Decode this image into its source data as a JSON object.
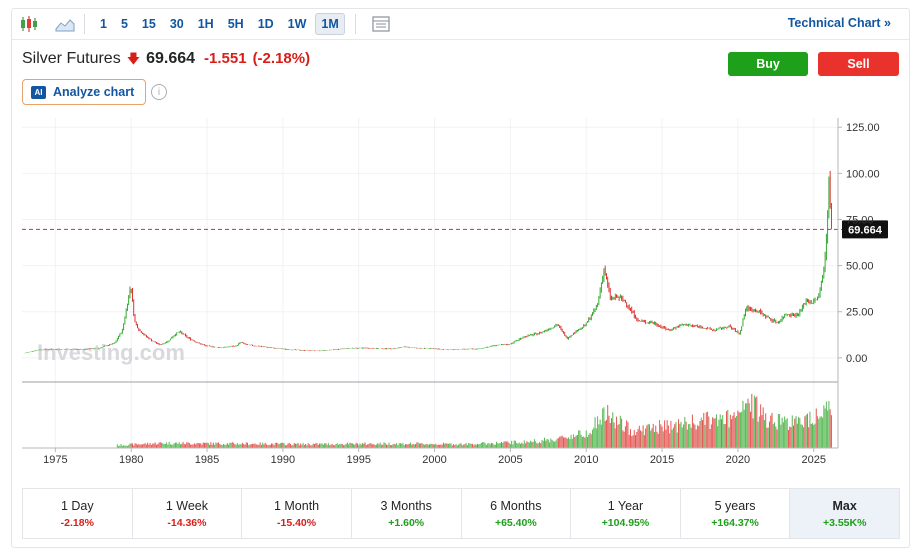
{
  "toolbar": {
    "timeframes": [
      "1",
      "5",
      "15",
      "30",
      "1H",
      "5H",
      "1D",
      "1W",
      "1M"
    ],
    "active_timeframe": "1M",
    "technical_chart_label": "Technical Chart »"
  },
  "instrument": {
    "name": "Silver Futures",
    "price": "69.664",
    "change": "-1.551",
    "change_pct": "(-2.18%)"
  },
  "actions": {
    "buy_label": "Buy",
    "sell_label": "Sell",
    "analyze_label": "Analyze chart",
    "ai_badge": "AI"
  },
  "colors": {
    "up": "#1ea01a",
    "down": "#d91e18",
    "accent": "#1256a0"
  },
  "watermark": "Investing.com",
  "chart_data": {
    "type": "bar",
    "x_tick_labels": [
      "1975",
      "1980",
      "1985",
      "1990",
      "1995",
      "2000",
      "2005",
      "2010",
      "2015",
      "2020",
      "2025"
    ],
    "y_tick_labels": [
      "0.00",
      "25.00",
      "50.00",
      "75.00",
      "100.00",
      "125.00"
    ],
    "ylim": [
      -12,
      130
    ],
    "xlim": [
      1972.8,
      2026.6
    ],
    "current_price_label": "69.664",
    "current_price": 69.664,
    "price_series": [
      [
        1973.0,
        2.5
      ],
      [
        1974.0,
        4.4
      ],
      [
        1975.0,
        4.5
      ],
      [
        1976.0,
        4.4
      ],
      [
        1977.0,
        4.7
      ],
      [
        1978.0,
        5.4
      ],
      [
        1979.0,
        8.0
      ],
      [
        1979.5,
        15.0
      ],
      [
        1979.8,
        28.0
      ],
      [
        1980.05,
        40.0
      ],
      [
        1980.3,
        20.0
      ],
      [
        1980.6,
        15.0
      ],
      [
        1981.0,
        12.0
      ],
      [
        1981.5,
        9.0
      ],
      [
        1982.0,
        7.0
      ],
      [
        1982.5,
        9.0
      ],
      [
        1983.0,
        13.0
      ],
      [
        1983.3,
        14.0
      ],
      [
        1983.8,
        11.0
      ],
      [
        1984.5,
        8.0
      ],
      [
        1985.0,
        6.5
      ],
      [
        1986.0,
        5.5
      ],
      [
        1987.0,
        6.5
      ],
      [
        1987.3,
        8.5
      ],
      [
        1987.7,
        7.0
      ],
      [
        1988.5,
        6.3
      ],
      [
        1989.5,
        5.3
      ],
      [
        1990.5,
        4.5
      ],
      [
        1991.5,
        4.0
      ],
      [
        1992.5,
        3.8
      ],
      [
        1993.5,
        4.5
      ],
      [
        1994.5,
        5.2
      ],
      [
        1995.5,
        5.3
      ],
      [
        1996.5,
        5.0
      ],
      [
        1997.5,
        5.0
      ],
      [
        1998.0,
        6.0
      ],
      [
        1999.0,
        5.2
      ],
      [
        2000.0,
        5.0
      ],
      [
        2001.0,
        4.3
      ],
      [
        2002.0,
        4.7
      ],
      [
        2003.0,
        4.8
      ],
      [
        2004.0,
        6.7
      ],
      [
        2005.0,
        7.3
      ],
      [
        2006.0,
        11.5
      ],
      [
        2007.0,
        13.4
      ],
      [
        2008.2,
        18.0
      ],
      [
        2008.8,
        10.5
      ],
      [
        2009.5,
        15.0
      ],
      [
        2010.0,
        17.5
      ],
      [
        2010.8,
        28.0
      ],
      [
        2011.25,
        48.0
      ],
      [
        2011.7,
        32.0
      ],
      [
        2012.2,
        33.0
      ],
      [
        2012.7,
        30.0
      ],
      [
        2013.5,
        20.0
      ],
      [
        2014.5,
        19.0
      ],
      [
        2015.5,
        15.0
      ],
      [
        2016.5,
        18.0
      ],
      [
        2017.5,
        17.0
      ],
      [
        2018.5,
        15.0
      ],
      [
        2019.5,
        17.0
      ],
      [
        2020.2,
        13.0
      ],
      [
        2020.6,
        27.0
      ],
      [
        2021.0,
        26.0
      ],
      [
        2021.5,
        25.0
      ],
      [
        2022.0,
        22.0
      ],
      [
        2022.7,
        19.0
      ],
      [
        2023.3,
        24.0
      ],
      [
        2024.0,
        23.0
      ],
      [
        2024.6,
        31.0
      ],
      [
        2025.0,
        30.0
      ],
      [
        2025.4,
        33.0
      ],
      [
        2025.65,
        44.0
      ],
      [
        2025.85,
        55.0
      ],
      [
        2026.0,
        80.0
      ],
      [
        2026.05,
        100.0
      ],
      [
        2026.12,
        95.0
      ],
      [
        2026.2,
        69.664
      ]
    ],
    "volume_profile": [
      [
        1979.0,
        0.05
      ],
      [
        1982.0,
        0.09
      ],
      [
        1987.0,
        0.08
      ],
      [
        1992.0,
        0.07
      ],
      [
        1997.0,
        0.08
      ],
      [
        2002.0,
        0.07
      ],
      [
        2006.0,
        0.11
      ],
      [
        2008.0,
        0.16
      ],
      [
        2010.0,
        0.28
      ],
      [
        2011.25,
        0.62
      ],
      [
        2013.0,
        0.32
      ],
      [
        2016.0,
        0.42
      ],
      [
        2018.0,
        0.5
      ],
      [
        2020.1,
        0.55
      ],
      [
        2020.6,
        0.85
      ],
      [
        2022.0,
        0.55
      ],
      [
        2024.0,
        0.45
      ],
      [
        2026.0,
        0.78
      ]
    ]
  },
  "periods": [
    {
      "label": "1 Day",
      "change": "-2.18%",
      "dir": "down"
    },
    {
      "label": "1 Week",
      "change": "-14.36%",
      "dir": "down"
    },
    {
      "label": "1 Month",
      "change": "-15.40%",
      "dir": "down"
    },
    {
      "label": "3 Months",
      "change": "+1.60%",
      "dir": "up"
    },
    {
      "label": "6 Months",
      "change": "+65.40%",
      "dir": "up"
    },
    {
      "label": "1 Year",
      "change": "+104.95%",
      "dir": "up"
    },
    {
      "label": "5 years",
      "change": "+164.37%",
      "dir": "up"
    },
    {
      "label": "Max",
      "change": "+3.55K%",
      "dir": "up",
      "active": true
    }
  ]
}
